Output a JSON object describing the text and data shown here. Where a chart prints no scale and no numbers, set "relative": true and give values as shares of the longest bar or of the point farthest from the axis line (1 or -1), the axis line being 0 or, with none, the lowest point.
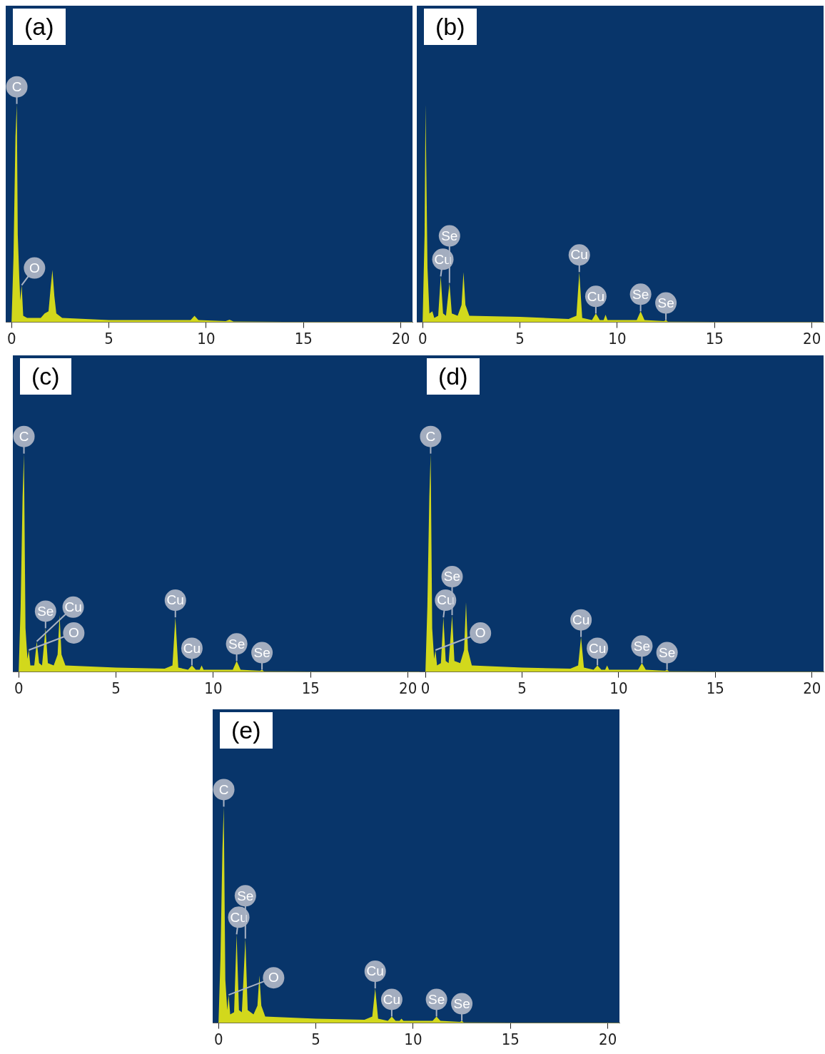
{
  "chart_data": [
    {
      "type": "area",
      "title": "(a)",
      "relative": true,
      "color": "#d2d81c",
      "xlim": [
        -0.3,
        20.6
      ],
      "xticks": [
        0,
        5,
        10,
        15,
        20
      ],
      "grid": false,
      "legend": false,
      "x": [
        -0.3,
        0,
        0.1,
        0.2,
        0.27,
        0.32,
        0.4,
        0.45,
        0.52,
        0.6,
        0.8,
        1.5,
        1.7,
        1.9,
        2.0,
        2.1,
        2.2,
        2.3,
        2.6,
        5,
        9.2,
        9.4,
        9.6,
        11.0,
        11.2,
        11.4,
        14,
        20.6
      ],
      "values": [
        0,
        0,
        0.3,
        0.85,
        1,
        0.4,
        0.2,
        0.1,
        0.17,
        0.03,
        0.02,
        0.02,
        0.04,
        0.05,
        0.15,
        0.24,
        0.12,
        0.04,
        0.02,
        0.01,
        0.01,
        0.03,
        0.01,
        0.005,
        0.012,
        0.004,
        0.002,
        0.002
      ],
      "annotations": [
        {
          "text": "C",
          "x": 0.27,
          "y": 1
        },
        {
          "text": "O",
          "x": 0.52,
          "y": 0.17
        }
      ]
    },
    {
      "type": "area",
      "title": "(b)",
      "relative": true,
      "color": "#d2d81c",
      "xlim": [
        -0.3,
        20.6
      ],
      "xticks": [
        0,
        5,
        10,
        15,
        20
      ],
      "grid": false,
      "legend": false,
      "x": [
        -0.3,
        0,
        0.1,
        0.15,
        0.25,
        0.35,
        0.5,
        0.6,
        0.8,
        0.93,
        1.05,
        1.2,
        1.38,
        1.5,
        1.8,
        2.0,
        2.1,
        2.2,
        2.4,
        5,
        7.5,
        7.9,
        8.05,
        8.2,
        8.7,
        8.9,
        9.1,
        9.3,
        9.4,
        9.5,
        11.0,
        11.2,
        11.4,
        12.4,
        12.5,
        12.6,
        15,
        20.6
      ],
      "values": [
        0,
        0,
        0.4,
        1,
        0.25,
        0.04,
        0.05,
        0.02,
        0.03,
        0.21,
        0.04,
        0.03,
        0.18,
        0.04,
        0.03,
        0.08,
        0.23,
        0.08,
        0.03,
        0.025,
        0.015,
        0.03,
        0.23,
        0.02,
        0.01,
        0.04,
        0.01,
        0.01,
        0.035,
        0.01,
        0.01,
        0.05,
        0.01,
        0.005,
        0.01,
        0.003,
        0.002,
        0.002
      ],
      "annotations": [
        {
          "text": "Cu",
          "x": 0.93,
          "y": 0.21
        },
        {
          "text": "Se",
          "x": 1.38,
          "y": 0.18
        },
        {
          "text": "Cu",
          "x": 8.05,
          "y": 0.23
        },
        {
          "text": "Cu",
          "x": 8.9,
          "y": 0.04
        },
        {
          "text": "Se",
          "x": 11.2,
          "y": 0.05
        },
        {
          "text": "Se",
          "x": 12.5,
          "y": 0.01
        }
      ]
    },
    {
      "type": "area",
      "title": "(c)",
      "relative": true,
      "color": "#d2d81c",
      "xlim": [
        -0.3,
        20.6
      ],
      "xticks": [
        0,
        5,
        10,
        15,
        20
      ],
      "grid": false,
      "legend": false,
      "x": [
        -0.3,
        0,
        0.1,
        0.2,
        0.27,
        0.35,
        0.45,
        0.52,
        0.6,
        0.8,
        0.93,
        1.05,
        1.2,
        1.38,
        1.5,
        1.8,
        2.0,
        2.1,
        2.2,
        2.4,
        5,
        7.5,
        7.9,
        8.05,
        8.2,
        8.7,
        8.9,
        9.1,
        9.3,
        9.4,
        9.5,
        11.0,
        11.2,
        11.4,
        12.4,
        12.5,
        12.6,
        15,
        20.6
      ],
      "values": [
        0,
        0,
        0.3,
        0.8,
        1,
        0.2,
        0.06,
        0.1,
        0.03,
        0.03,
        0.14,
        0.04,
        0.03,
        0.2,
        0.04,
        0.03,
        0.08,
        0.26,
        0.08,
        0.03,
        0.02,
        0.015,
        0.03,
        0.25,
        0.02,
        0.01,
        0.03,
        0.01,
        0.01,
        0.03,
        0.01,
        0.01,
        0.05,
        0.01,
        0.005,
        0.01,
        0.003,
        0.002,
        0.002
      ],
      "annotations": [
        {
          "text": "C",
          "x": 0.27,
          "y": 1
        },
        {
          "text": "O",
          "x": 0.52,
          "y": 0.1
        },
        {
          "text": "Cu",
          "x": 0.93,
          "y": 0.14
        },
        {
          "text": "Se",
          "x": 1.38,
          "y": 0.2
        },
        {
          "text": "Cu",
          "x": 8.05,
          "y": 0.25
        },
        {
          "text": "Cu",
          "x": 8.9,
          "y": 0.03
        },
        {
          "text": "Se",
          "x": 11.2,
          "y": 0.05
        },
        {
          "text": "Se",
          "x": 12.5,
          "y": 0.01
        }
      ]
    },
    {
      "type": "area",
      "title": "(d)",
      "relative": true,
      "color": "#d2d81c",
      "xlim": [
        -0.3,
        20.6
      ],
      "xticks": [
        0,
        5,
        10,
        15,
        20
      ],
      "grid": false,
      "legend": false,
      "x": [
        -0.3,
        0,
        0.1,
        0.2,
        0.27,
        0.35,
        0.45,
        0.52,
        0.6,
        0.8,
        0.93,
        1.05,
        1.2,
        1.38,
        1.5,
        1.8,
        2.0,
        2.1,
        2.2,
        2.4,
        5,
        7.5,
        7.9,
        8.05,
        8.2,
        8.7,
        8.9,
        9.1,
        9.3,
        9.4,
        9.5,
        11.0,
        11.2,
        11.4,
        12.4,
        12.5,
        12.6,
        15,
        20.6
      ],
      "values": [
        0,
        0,
        0.3,
        0.8,
        1,
        0.2,
        0.06,
        0.1,
        0.03,
        0.04,
        0.25,
        0.05,
        0.04,
        0.26,
        0.05,
        0.04,
        0.1,
        0.32,
        0.1,
        0.03,
        0.02,
        0.015,
        0.03,
        0.16,
        0.02,
        0.01,
        0.03,
        0.01,
        0.01,
        0.03,
        0.01,
        0.01,
        0.04,
        0.01,
        0.005,
        0.01,
        0.003,
        0.002,
        0.002
      ],
      "annotations": [
        {
          "text": "C",
          "x": 0.27,
          "y": 1
        },
        {
          "text": "O",
          "x": 0.52,
          "y": 0.1
        },
        {
          "text": "Cu",
          "x": 0.93,
          "y": 0.25
        },
        {
          "text": "Se",
          "x": 1.38,
          "y": 0.26
        },
        {
          "text": "Cu",
          "x": 8.05,
          "y": 0.16
        },
        {
          "text": "Cu",
          "x": 8.9,
          "y": 0.03
        },
        {
          "text": "Se",
          "x": 11.2,
          "y": 0.04
        },
        {
          "text": "Se",
          "x": 12.5,
          "y": 0.01
        }
      ]
    },
    {
      "type": "area",
      "title": "(e)",
      "relative": true,
      "color": "#d2d81c",
      "xlim": [
        -0.3,
        20.6
      ],
      "xticks": [
        0,
        5,
        10,
        15,
        20
      ],
      "grid": false,
      "legend": false,
      "x": [
        -0.3,
        0,
        0.1,
        0.2,
        0.27,
        0.35,
        0.45,
        0.52,
        0.6,
        0.8,
        0.93,
        1.05,
        1.2,
        1.38,
        1.5,
        1.8,
        2.0,
        2.1,
        2.2,
        2.4,
        5,
        7.5,
        7.9,
        8.05,
        8.2,
        8.7,
        8.9,
        9.1,
        9.3,
        9.4,
        9.5,
        11.0,
        11.2,
        11.4,
        12.4,
        12.5,
        12.6,
        15,
        20.6
      ],
      "values": [
        0,
        0,
        0.3,
        0.8,
        1,
        0.2,
        0.06,
        0.13,
        0.04,
        0.05,
        0.41,
        0.06,
        0.05,
        0.39,
        0.06,
        0.04,
        0.08,
        0.22,
        0.08,
        0.03,
        0.02,
        0.015,
        0.03,
        0.16,
        0.02,
        0.01,
        0.03,
        0.01,
        0.01,
        0.02,
        0.01,
        0.01,
        0.03,
        0.01,
        0.005,
        0.01,
        0.003,
        0.002,
        0.002
      ],
      "annotations": [
        {
          "text": "C",
          "x": 0.27,
          "y": 1
        },
        {
          "text": "O",
          "x": 0.52,
          "y": 0.13
        },
        {
          "text": "Cu",
          "x": 0.93,
          "y": 0.41
        },
        {
          "text": "Se",
          "x": 1.38,
          "y": 0.39
        },
        {
          "text": "Cu",
          "x": 8.05,
          "y": 0.16
        },
        {
          "text": "Cu",
          "x": 8.9,
          "y": 0.03
        },
        {
          "text": "Se",
          "x": 11.2,
          "y": 0.03
        },
        {
          "text": "Se",
          "x": 12.5,
          "y": 0.01
        }
      ]
    }
  ]
}
